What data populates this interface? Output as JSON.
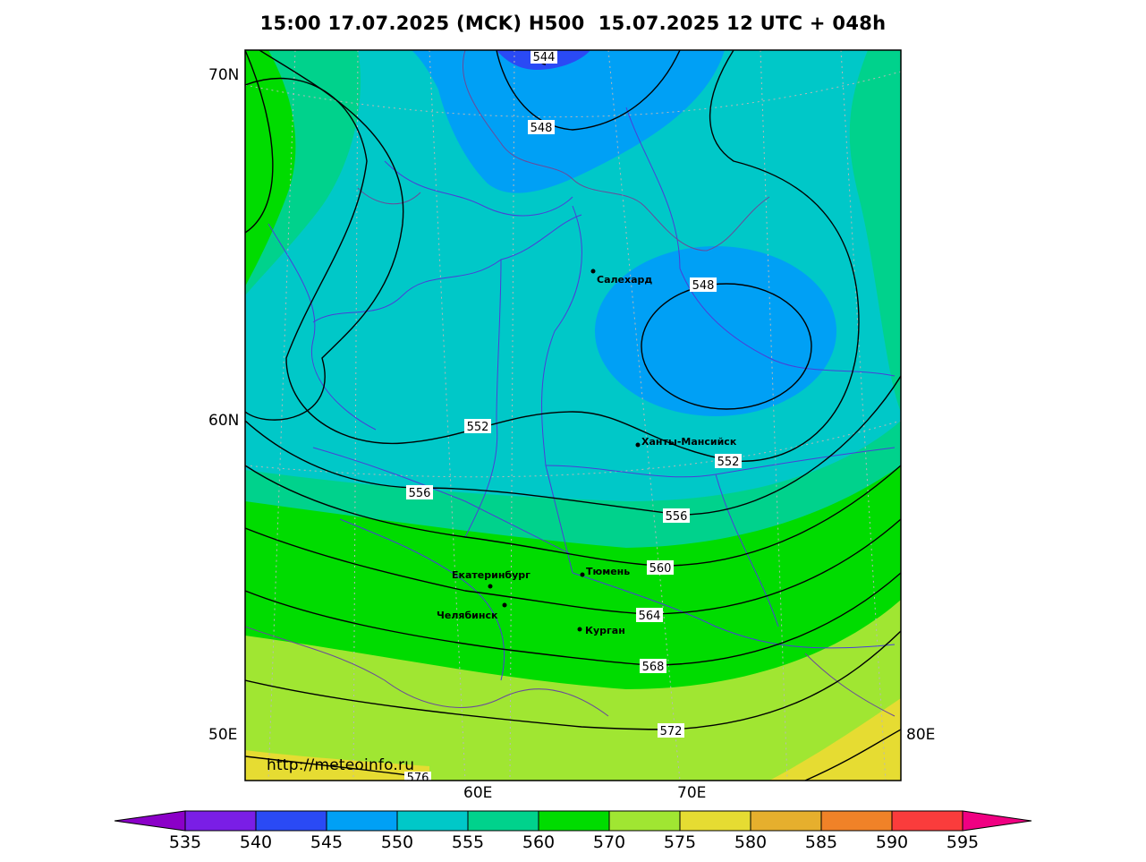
{
  "title": "15:00 17.07.2025 (MCK) H500  15.07.2025 12 UTC + 048h",
  "url": "http://meteoinfo.ru",
  "lat_labels": [
    "70N",
    "60N",
    "50E"
  ],
  "lon_labels": [
    "60E",
    "70E",
    "80E"
  ],
  "cities": [
    {
      "name": "Салехард"
    },
    {
      "name": "Ханты-Мансийск"
    },
    {
      "name": "Тюмень"
    },
    {
      "name": "Екатеринбург"
    },
    {
      "name": "Челябинск"
    },
    {
      "name": "Курган"
    }
  ],
  "contour_labels": [
    "544",
    "548",
    "548",
    "552",
    "552",
    "556",
    "556",
    "560",
    "564",
    "568",
    "572",
    "576"
  ],
  "colorbar": {
    "ticks": [
      "535",
      "540",
      "545",
      "550",
      "555",
      "560",
      "570",
      "575",
      "580",
      "585",
      "590",
      "595"
    ],
    "colors": [
      "#8b00c8",
      "#7a1ee6",
      "#2a4af5",
      "#00a0f5",
      "#00c8c8",
      "#00d28c",
      "#00dc00",
      "#a0e632",
      "#e6dc32",
      "#e6af2d",
      "#f08228",
      "#fa3c3c",
      "#f00082"
    ]
  }
}
